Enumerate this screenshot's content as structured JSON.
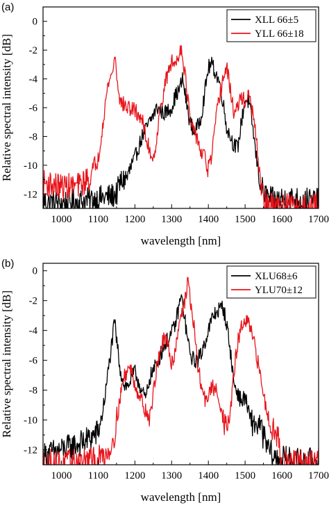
{
  "chart_data": [
    {
      "panel": "(a)",
      "type": "line",
      "xlabel": "wavelength [nm]",
      "ylabel": "Relative spectral intensity [dB]",
      "xlim": [
        950,
        1700
      ],
      "ylim": [
        -13,
        1
      ],
      "xticks": [
        1000,
        1100,
        1200,
        1300,
        1400,
        1500,
        1600,
        1700
      ],
      "yticks": [
        0,
        -2,
        -4,
        -6,
        -8,
        -10,
        -12
      ],
      "legend_position": "top-right",
      "series": [
        {
          "name": "XLL 66±5",
          "color": "#000000",
          "x": [
            950,
            1000,
            1050,
            1100,
            1130,
            1150,
            1160,
            1180,
            1200,
            1220,
            1240,
            1260,
            1280,
            1300,
            1310,
            1320,
            1330,
            1340,
            1350,
            1360,
            1370,
            1380,
            1390,
            1400,
            1410,
            1420,
            1430,
            1440,
            1450,
            1460,
            1470,
            1480,
            1490,
            1500,
            1510,
            1520,
            1530,
            1540,
            1550,
            1560,
            1580,
            1600,
            1650,
            1700
          ],
          "y": [
            -12.5,
            -12.6,
            -12.5,
            -12.3,
            -12.2,
            -12.0,
            -11.2,
            -10.8,
            -9.5,
            -8.0,
            -7.0,
            -6.0,
            -6.4,
            -6.0,
            -5.2,
            -4.8,
            -4.0,
            -5.6,
            -7.0,
            -7.6,
            -7.4,
            -6.6,
            -5.0,
            -3.2,
            -3.0,
            -3.6,
            -4.2,
            -5.6,
            -7.4,
            -8.0,
            -8.6,
            -8.8,
            -7.0,
            -5.4,
            -5.6,
            -7.2,
            -9.4,
            -11.0,
            -12.0,
            -12.2,
            -12.5,
            -12.3,
            -12.4,
            -12.5
          ]
        },
        {
          "name": "YLL 66±18",
          "color": "#e8141b",
          "x": [
            950,
            1000,
            1050,
            1080,
            1100,
            1110,
            1120,
            1130,
            1140,
            1145,
            1150,
            1160,
            1180,
            1200,
            1220,
            1230,
            1250,
            1260,
            1270,
            1280,
            1290,
            1300,
            1310,
            1320,
            1325,
            1330,
            1340,
            1350,
            1360,
            1370,
            1380,
            1390,
            1400,
            1410,
            1420,
            1430,
            1440,
            1450,
            1460,
            1470,
            1480,
            1490,
            1500,
            1510,
            1520,
            1530,
            1540,
            1550,
            1560,
            1580,
            1600,
            1650,
            1700
          ],
          "y": [
            -11.2,
            -11.5,
            -11.4,
            -10.8,
            -9.6,
            -7.6,
            -5.6,
            -4.0,
            -3.6,
            -2.2,
            -3.6,
            -5.6,
            -6.0,
            -6.2,
            -6.8,
            -8.2,
            -9.6,
            -8.0,
            -6.0,
            -4.6,
            -3.6,
            -2.8,
            -3.0,
            -2.2,
            -1.8,
            -2.4,
            -4.4,
            -6.8,
            -7.8,
            -8.0,
            -9.2,
            -9.4,
            -10.4,
            -9.2,
            -7.0,
            -5.2,
            -4.0,
            -3.2,
            -4.8,
            -6.4,
            -6.0,
            -5.2,
            -5.6,
            -5.2,
            -6.2,
            -8.2,
            -10.6,
            -12.4,
            -12.8,
            -12.9,
            -12.8,
            -12.9,
            -12.8
          ]
        }
      ]
    },
    {
      "panel": "(b)",
      "type": "line",
      "xlabel": "wavelength [nm]",
      "ylabel": "Relative spectral intensity [dB]",
      "xlim": [
        950,
        1700
      ],
      "ylim": [
        -13,
        0.5
      ],
      "xticks": [
        1000,
        1100,
        1200,
        1300,
        1400,
        1500,
        1600,
        1700
      ],
      "yticks": [
        0,
        -2,
        -4,
        -6,
        -8,
        -10,
        -12
      ],
      "legend_position": "top-right",
      "series": [
        {
          "name": "XLU68±6",
          "color": "#000000",
          "x": [
            950,
            1000,
            1050,
            1080,
            1100,
            1110,
            1120,
            1130,
            1140,
            1145,
            1150,
            1160,
            1170,
            1180,
            1190,
            1200,
            1210,
            1220,
            1230,
            1240,
            1260,
            1280,
            1300,
            1310,
            1320,
            1325,
            1330,
            1340,
            1350,
            1360,
            1370,
            1380,
            1400,
            1410,
            1420,
            1430,
            1440,
            1450,
            1460,
            1470,
            1480,
            1490,
            1500,
            1510,
            1520,
            1540,
            1560,
            1580,
            1600,
            1650,
            1700
          ],
          "y": [
            -12.4,
            -12.0,
            -11.6,
            -11.2,
            -10.8,
            -9.8,
            -8.2,
            -6.2,
            -4.4,
            -3.4,
            -4.6,
            -6.6,
            -7.6,
            -7.8,
            -7.2,
            -6.8,
            -7.4,
            -8.2,
            -8.6,
            -7.2,
            -6.2,
            -5.0,
            -4.2,
            -3.6,
            -2.4,
            -1.8,
            -2.2,
            -4.0,
            -5.6,
            -6.0,
            -6.0,
            -5.6,
            -4.0,
            -3.2,
            -2.8,
            -2.6,
            -2.4,
            -3.6,
            -5.4,
            -7.6,
            -8.2,
            -8.8,
            -8.4,
            -9.6,
            -10.2,
            -10.4,
            -11.8,
            -12.6,
            -12.6,
            -12.8,
            -12.7
          ]
        },
        {
          "name": "YLU70±12",
          "color": "#e8141b",
          "x": [
            950,
            1000,
            1050,
            1100,
            1120,
            1130,
            1140,
            1150,
            1160,
            1170,
            1180,
            1190,
            1200,
            1220,
            1240,
            1250,
            1260,
            1270,
            1280,
            1290,
            1300,
            1310,
            1320,
            1330,
            1340,
            1345,
            1350,
            1360,
            1370,
            1380,
            1390,
            1400,
            1410,
            1420,
            1430,
            1440,
            1450,
            1460,
            1470,
            1480,
            1490,
            1500,
            1510,
            1520,
            1530,
            1540,
            1560,
            1580,
            1590,
            1600,
            1650,
            1700
          ],
          "y": [
            -12.8,
            -12.9,
            -12.8,
            -12.6,
            -12.3,
            -12.0,
            -11.4,
            -10.2,
            -8.4,
            -7.2,
            -6.6,
            -6.6,
            -7.6,
            -8.8,
            -10.0,
            -8.2,
            -6.4,
            -5.2,
            -4.6,
            -5.0,
            -6.2,
            -5.4,
            -3.4,
            -2.6,
            -1.6,
            -0.5,
            -1.8,
            -3.6,
            -6.2,
            -7.6,
            -8.6,
            -8.4,
            -7.8,
            -8.0,
            -8.6,
            -9.8,
            -10.8,
            -9.4,
            -6.8,
            -4.8,
            -3.8,
            -3.4,
            -3.6,
            -4.4,
            -5.6,
            -6.8,
            -9.6,
            -10.8,
            -11.2,
            -12.8,
            -12.9,
            -12.8
          ]
        }
      ]
    }
  ],
  "panels": [
    "(a)",
    "(b)"
  ]
}
